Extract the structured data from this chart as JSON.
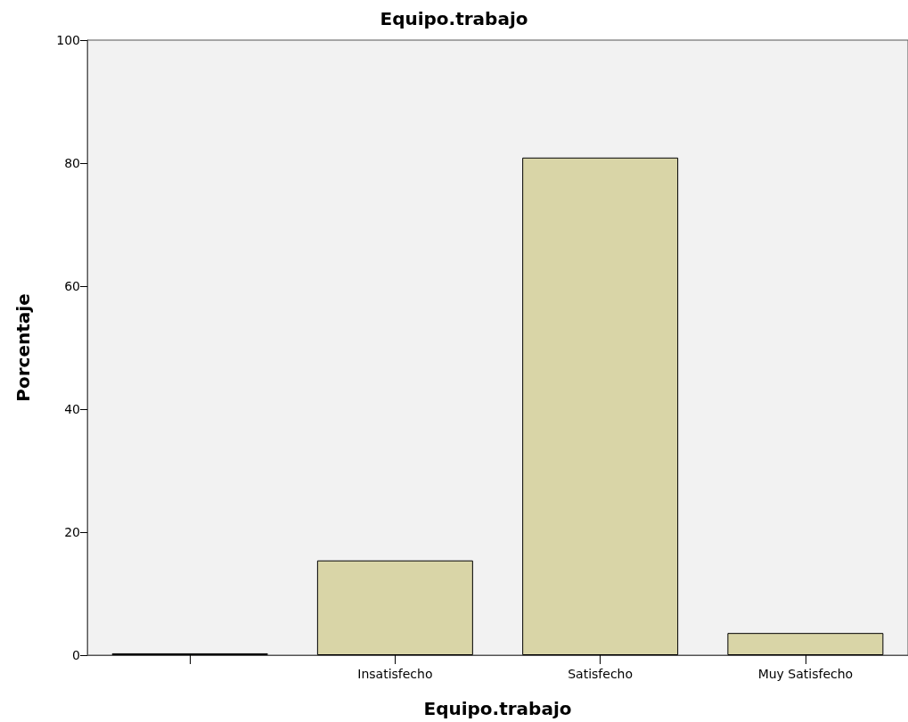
{
  "chart_data": {
    "type": "bar",
    "title": "Equipo.trabajo",
    "xlabel": "Equipo.trabajo",
    "ylabel": "Porcentaje",
    "categories": [
      null,
      "Insatisfecho",
      "Satisfecho",
      "Muy Satisfecho"
    ],
    "values": [
      0.3,
      15.4,
      80.9,
      3.6
    ],
    "color": "#d9d5a7",
    "ylim": [
      0,
      100
    ],
    "yticks": [
      0,
      20,
      40,
      60,
      80,
      100
    ],
    "grid": false
  }
}
